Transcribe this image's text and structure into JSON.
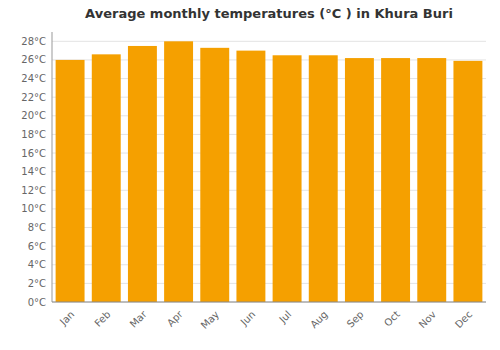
{
  "chart_data": {
    "type": "bar",
    "title": "Average monthly temperatures (°C ) in Khura Buri",
    "categories": [
      "Jan",
      "Feb",
      "Mar",
      "Apr",
      "May",
      "Jun",
      "Jul",
      "Aug",
      "Sep",
      "Oct",
      "Nov",
      "Dec"
    ],
    "values": [
      26.0,
      26.6,
      27.5,
      28.0,
      27.3,
      27.0,
      26.5,
      26.5,
      26.2,
      26.2,
      26.2,
      25.9
    ],
    "color": "#F5A000",
    "ylim": [
      0,
      29
    ],
    "yticks": [
      {
        "value": 0,
        "label": "0°C"
      },
      {
        "value": 2,
        "label": "2°C"
      },
      {
        "value": 4,
        "label": "4°C"
      },
      {
        "value": 6,
        "label": "6°C"
      },
      {
        "value": 8,
        "label": "8°C"
      },
      {
        "value": 10,
        "label": "10°C"
      },
      {
        "value": 12,
        "label": "12°C"
      },
      {
        "value": 14,
        "label": "14°C"
      },
      {
        "value": 16,
        "label": "16°C"
      },
      {
        "value": 18,
        "label": "18°C"
      },
      {
        "value": 20,
        "label": "20°C"
      },
      {
        "value": 22,
        "label": "22°C"
      },
      {
        "value": 24,
        "label": "24°C"
      },
      {
        "value": 26,
        "label": "26°C"
      },
      {
        "value": 28,
        "label": "28°C"
      }
    ],
    "grid": true
  }
}
